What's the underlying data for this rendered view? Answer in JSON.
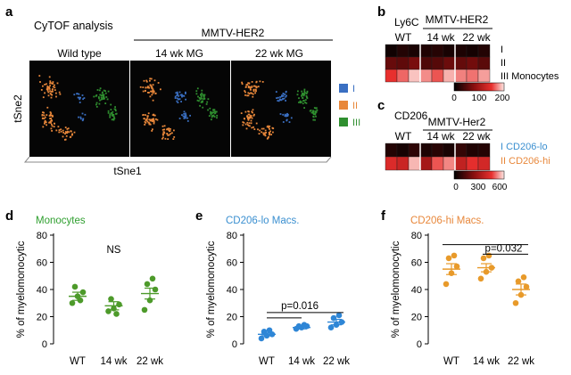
{
  "panel_a": {
    "letter": "a",
    "title": "CyTOF analysis",
    "group_label": "MMTV-HER2",
    "columns": [
      "Wild type",
      "14 wk MG",
      "22 wk MG"
    ],
    "y_axis": "tSne2",
    "x_axis": "tSne1",
    "legend": [
      {
        "label": "I",
        "color": "#3a6fc2"
      },
      {
        "label": "II",
        "color": "#e8873a"
      },
      {
        "label": "III",
        "color": "#2f8f2f"
      }
    ]
  },
  "panel_b": {
    "letter": "b",
    "marker": "Ly6C",
    "group_label": "MMTV-HER2",
    "columns": [
      "WT",
      "14 wk",
      "22 wk"
    ],
    "rows": [
      {
        "label": "I",
        "color": "#3a8fd0"
      },
      {
        "label": "II",
        "color": "#e8873a"
      },
      {
        "label": "III Monocytes",
        "color": "#2f9f2f"
      }
    ],
    "colorbar_ticks": [
      "0",
      "100",
      "200"
    ],
    "values": [
      [
        10,
        20,
        15,
        18,
        22,
        14,
        16,
        12,
        20
      ],
      [
        60,
        55,
        70,
        45,
        50,
        62,
        58,
        66,
        52
      ],
      [
        150,
        165,
        190,
        175,
        160,
        185,
        172,
        168,
        180
      ]
    ]
  },
  "panel_c": {
    "letter": "c",
    "marker": "CD206",
    "group_label": "MMTV-Her2",
    "columns": [
      "WT",
      "14 wk",
      "22 wk"
    ],
    "rows": [
      {
        "label": "I CD206-lo",
        "color": "#3a8fd0"
      },
      {
        "label": "II CD206-hi",
        "color": "#e8873a"
      }
    ],
    "colorbar_ticks": [
      "0",
      "300",
      "600"
    ],
    "values": [
      [
        60,
        40,
        80,
        50,
        70,
        45,
        90,
        55,
        65
      ],
      [
        420,
        380,
        560,
        300,
        480,
        520,
        360,
        440,
        400
      ]
    ]
  },
  "chart_data": [
    {
      "type": "scatter",
      "panel": "d",
      "title": "Monocytes",
      "title_color": "#2f9f2f",
      "point_color": "#4d9a2a",
      "categories": [
        "WT",
        "14 wk",
        "22 wk"
      ],
      "ylabel": "% of myelomonocytic",
      "ylim": [
        0,
        80
      ],
      "yticks": [
        0,
        20,
        40,
        60,
        80
      ],
      "points": [
        [
          30,
          35,
          38,
          42,
          32
        ],
        [
          24,
          26,
          29,
          33,
          22
        ],
        [
          25,
          32,
          40,
          44,
          48
        ]
      ],
      "means": [
        35,
        28,
        37
      ],
      "sems": [
        3,
        3,
        4
      ],
      "annotation": "NS"
    },
    {
      "type": "scatter",
      "panel": "e",
      "title": "CD206-lo Macs.",
      "title_color": "#3a8fd0",
      "point_color": "#2f86d6",
      "categories": [
        "WT",
        "14 wk",
        "22 wk"
      ],
      "ylabel": "% of myelomonocytic",
      "ylim": [
        0,
        80
      ],
      "yticks": [
        0,
        20,
        40,
        60,
        80
      ],
      "points": [
        [
          4,
          6,
          7,
          9,
          10
        ],
        [
          11,
          12,
          13,
          13,
          14
        ],
        [
          12,
          14,
          16,
          19,
          21
        ]
      ],
      "means": [
        7,
        12,
        16
      ],
      "sems": [
        1,
        1,
        2
      ],
      "annotation": "p=0.016"
    },
    {
      "type": "scatter",
      "panel": "f",
      "title": "CD206-hi Macs.",
      "title_color": "#e8873a",
      "point_color": "#e89a2a",
      "categories": [
        "WT",
        "14 wk",
        "22 wk"
      ],
      "ylabel": "% of myelomonocytic",
      "ylim": [
        0,
        80
      ],
      "yticks": [
        0,
        20,
        40,
        60,
        80
      ],
      "points": [
        [
          44,
          52,
          57,
          63,
          65
        ],
        [
          48,
          53,
          56,
          63,
          65
        ],
        [
          30,
          36,
          42,
          46,
          49
        ]
      ],
      "means": [
        55,
        56,
        40
      ],
      "sems": [
        4,
        3,
        4
      ],
      "annotation": "p=0.032"
    }
  ]
}
